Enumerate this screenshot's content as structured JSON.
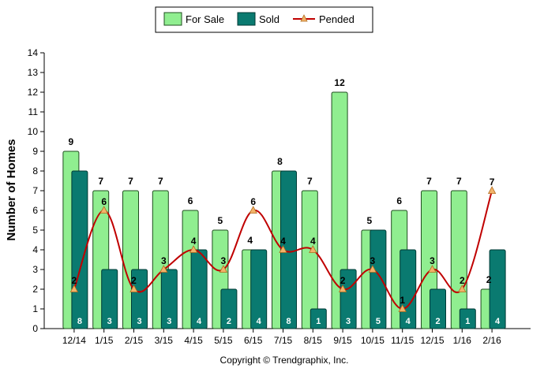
{
  "chart_data": {
    "type": "bar",
    "ylabel": "Number of Homes",
    "ylim": [
      0,
      14
    ],
    "yticks": [
      0,
      1,
      2,
      3,
      4,
      5,
      6,
      7,
      8,
      9,
      10,
      11,
      12,
      13,
      14
    ],
    "grid": false,
    "legend_position": "top-center",
    "categories": [
      "12/14",
      "1/15",
      "2/15",
      "3/15",
      "4/15",
      "5/15",
      "6/15",
      "7/15",
      "8/15",
      "9/15",
      "10/15",
      "11/15",
      "12/15",
      "1/16",
      "2/16"
    ],
    "series": [
      {
        "name": "For Sale",
        "type": "bar",
        "color": "#90ee90",
        "values": [
          9,
          7,
          7,
          7,
          6,
          5,
          4,
          8,
          7,
          12,
          5,
          6,
          7,
          7,
          2
        ]
      },
      {
        "name": "Sold",
        "type": "bar",
        "color": "#0a7a70",
        "values": [
          8,
          3,
          3,
          3,
          4,
          2,
          4,
          8,
          1,
          3,
          5,
          4,
          2,
          1,
          4
        ]
      },
      {
        "name": "Pended",
        "type": "line",
        "color": "#c00000",
        "values": [
          2,
          6,
          2,
          3,
          4,
          3,
          6,
          4,
          4,
          2,
          3,
          1,
          3,
          2,
          7
        ]
      }
    ],
    "footer": "Copyright © Trendgraphix, Inc."
  }
}
